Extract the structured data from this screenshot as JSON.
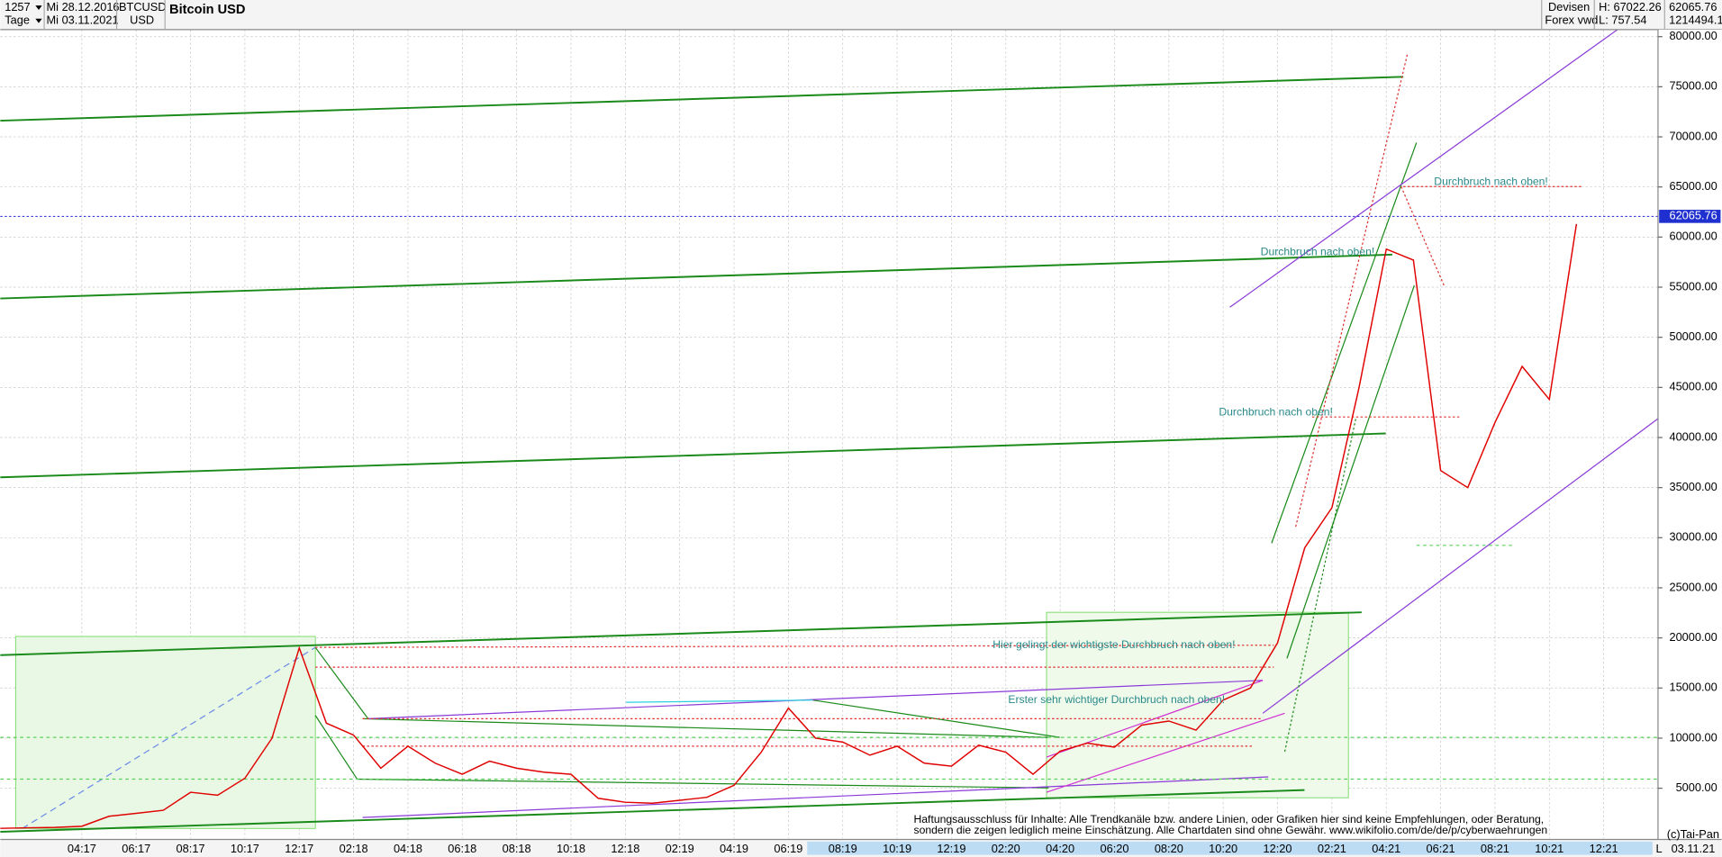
{
  "header": {
    "count": "1257",
    "from": "Mi 28.12.2016",
    "period": "Tage",
    "to": "Mi 03.11.2021",
    "symbol": "BTCUSD",
    "currency": "USD",
    "market": "Devisen",
    "source": "Forex vwd",
    "high": "H: 67022.26",
    "low": "L: 757.54",
    "volume": "1214494.1"
  },
  "chart_data": {
    "type": "line",
    "title": "Bitcoin USD",
    "color": "#e00000",
    "x": [
      "2017-01",
      "2017-02",
      "2017-03",
      "2017-04",
      "2017-05",
      "2017-06",
      "2017-07",
      "2017-08",
      "2017-09",
      "2017-10",
      "2017-11",
      "2017-12",
      "2018-01",
      "2018-02",
      "2018-03",
      "2018-04",
      "2018-05",
      "2018-06",
      "2018-07",
      "2018-08",
      "2018-09",
      "2018-10",
      "2018-11",
      "2018-12",
      "2019-01",
      "2019-02",
      "2019-03",
      "2019-04",
      "2019-05",
      "2019-06",
      "2019-07",
      "2019-08",
      "2019-09",
      "2019-10",
      "2019-11",
      "2019-12",
      "2020-01",
      "2020-02",
      "2020-03",
      "2020-04",
      "2020-05",
      "2020-06",
      "2020-07",
      "2020-08",
      "2020-09",
      "2020-10",
      "2020-11",
      "2020-12",
      "2021-01",
      "2021-02",
      "2021-03",
      "2021-04",
      "2021-05",
      "2021-06",
      "2021-07",
      "2021-08",
      "2021-09",
      "2021-10",
      "2021-11"
    ],
    "values": [
      1000,
      1050,
      1100,
      1200,
      2200,
      2500,
      2800,
      4600,
      4300,
      6000,
      10000,
      19000,
      11500,
      10300,
      7000,
      9200,
      7500,
      6400,
      7700,
      7000,
      6600,
      6400,
      4000,
      3600,
      3500,
      3800,
      4100,
      5300,
      8600,
      13000,
      10000,
      9600,
      8300,
      9200,
      7500,
      7200,
      9300,
      8600,
      6400,
      8700,
      9500,
      9100,
      11300,
      11700,
      10800,
      13800,
      15000,
      19500,
      29000,
      33000,
      45000,
      58800,
      57700,
      36700,
      35000,
      41500,
      47100,
      43800,
      61300
    ],
    "xlim": [
      "2017-01",
      "2022-02"
    ],
    "xticks": [
      {
        "value": "2017-04",
        "label": "04:17"
      },
      {
        "value": "2017-06",
        "label": "06:17"
      },
      {
        "value": "2017-08",
        "label": "08:17"
      },
      {
        "value": "2017-10",
        "label": "10:17"
      },
      {
        "value": "2017-12",
        "label": "12:17"
      },
      {
        "value": "2018-02",
        "label": "02:18"
      },
      {
        "value": "2018-04",
        "label": "04:18"
      },
      {
        "value": "2018-06",
        "label": "06:18"
      },
      {
        "value": "2018-08",
        "label": "08:18"
      },
      {
        "value": "2018-10",
        "label": "10:18"
      },
      {
        "value": "2018-12",
        "label": "12:18"
      },
      {
        "value": "2019-02",
        "label": "02:19"
      },
      {
        "value": "2019-04",
        "label": "04:19"
      },
      {
        "value": "2019-06",
        "label": "06:19"
      },
      {
        "value": "2019-08",
        "label": "08:19"
      },
      {
        "value": "2019-10",
        "label": "10:19"
      },
      {
        "value": "2019-12",
        "label": "12:19"
      },
      {
        "value": "2020-02",
        "label": "02:20"
      },
      {
        "value": "2020-04",
        "label": "04:20"
      },
      {
        "value": "2020-06",
        "label": "06:20"
      },
      {
        "value": "2020-08",
        "label": "08:20"
      },
      {
        "value": "2020-10",
        "label": "10:20"
      },
      {
        "value": "2020-12",
        "label": "12:20"
      },
      {
        "value": "2021-02",
        "label": "02:21"
      },
      {
        "value": "2021-04",
        "label": "04:21"
      },
      {
        "value": "2021-06",
        "label": "06:21"
      },
      {
        "value": "2021-08",
        "label": "08:21"
      },
      {
        "value": "2021-10",
        "label": "10:21"
      },
      {
        "value": "2021-12",
        "label": "12:21"
      }
    ],
    "ylim": [
      0,
      80700
    ],
    "yticks": [
      {
        "value": 5000,
        "label": "5000.00"
      },
      {
        "value": 10000,
        "label": "10000.00"
      },
      {
        "value": 15000,
        "label": "15000.00"
      },
      {
        "value": 20000,
        "label": "20000.00"
      },
      {
        "value": 25000,
        "label": "25000.00"
      },
      {
        "value": 30000,
        "label": "30000.00"
      },
      {
        "value": 35000,
        "label": "35000.00"
      },
      {
        "value": 40000,
        "label": "40000.00"
      },
      {
        "value": 45000,
        "label": "45000.00"
      },
      {
        "value": 50000,
        "label": "50000.00"
      },
      {
        "value": 55000,
        "label": "55000.00"
      },
      {
        "value": 60000,
        "label": "60000.00"
      },
      {
        "value": 65000,
        "label": "65000.00"
      },
      {
        "value": 70000,
        "label": "70000.00"
      },
      {
        "value": 75000,
        "label": "75000.00"
      },
      {
        "value": 80000,
        "label": "80000.00"
      }
    ],
    "grid": true,
    "last_price": 62065.76,
    "annotations": [
      "Durchbruch nach oben!",
      "Durchbruch nach oben!",
      "Durchbruch nach oben!",
      "Hier gelingt der wichtigste Durchbruch nach oben!",
      "Erster sehr wichtiger Durchbruch nach oben!"
    ]
  },
  "footer": {
    "disclaimer": [
      "Haftungsausschluss für Inhalte: Alle Trendkanäle bzw. andere Linien, oder Grafiken hier sind keine Empfehlungen, oder Beratung,",
      "sondern die zeigen lediglich meine  Einschätzung. Alle Chartdaten sind ohne Gewähr.  www.wikifolio.com/de/de/p/cyberwaehrungen"
    ],
    "copyright": "(c)Tai-Pan",
    "date": "03.11.21",
    "scale": "L"
  }
}
